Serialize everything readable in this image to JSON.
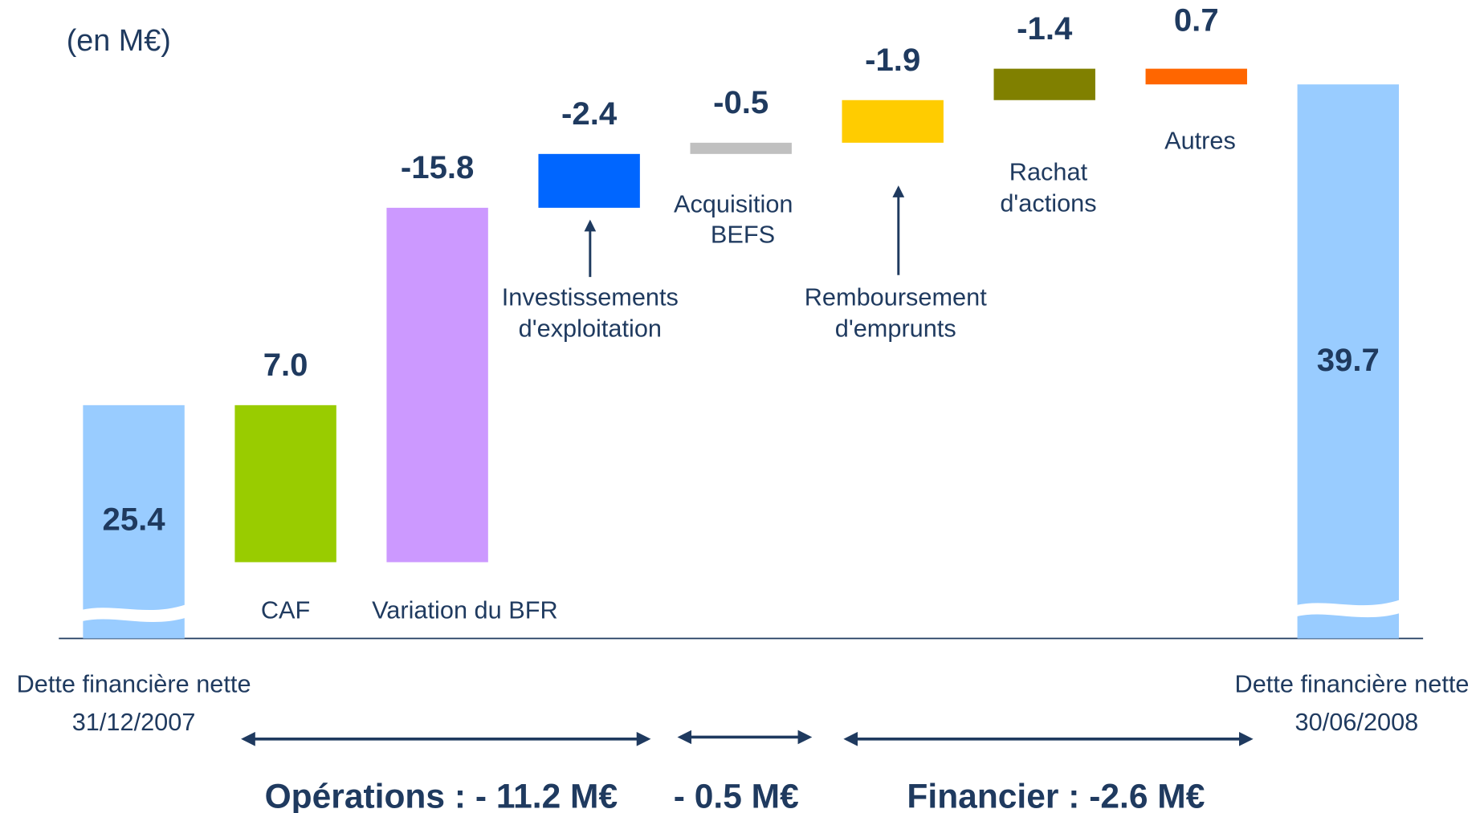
{
  "chart_data": {
    "type": "waterfall",
    "title": "(en M€)",
    "categories": [
      [
        "Dette financière nette",
        "31/12/2007"
      ],
      [
        "CAF"
      ],
      [
        "Variation du BFR"
      ],
      [
        "Investissements",
        "d'exploitation"
      ],
      [
        "Acquisition",
        "BEFS"
      ],
      [
        "Remboursement",
        "d'emprunts"
      ],
      [
        "Rachat",
        "d'actions"
      ],
      [
        "Autres"
      ],
      [
        "Dette financière nette",
        "30/06/2008"
      ]
    ],
    "measures": [
      "absolute",
      "relative",
      "relative",
      "relative",
      "relative",
      "relative",
      "relative",
      "relative",
      "total"
    ],
    "values": [
      25.4,
      7.0,
      -15.8,
      -2.4,
      -0.5,
      -1.9,
      -1.4,
      0.7,
      39.7
    ],
    "value_labels": [
      "25.4",
      "7.0",
      "-15.8",
      "-2.4",
      "-0.5",
      "-1.9",
      "-1.4",
      "0.7",
      "39.7"
    ],
    "colors": [
      "#99ccff",
      "#99cc00",
      "#cc99ff",
      "#0066ff",
      "#c0c0c0",
      "#ffcc00",
      "#808000",
      "#ff6600",
      "#99ccff"
    ],
    "ylim": [
      15,
      42
    ],
    "axis_break": true,
    "group_labels": [
      "Opérations :  - 11.2 M€",
      "- 0.5 M€",
      "Financier : -2.6 M€"
    ]
  }
}
